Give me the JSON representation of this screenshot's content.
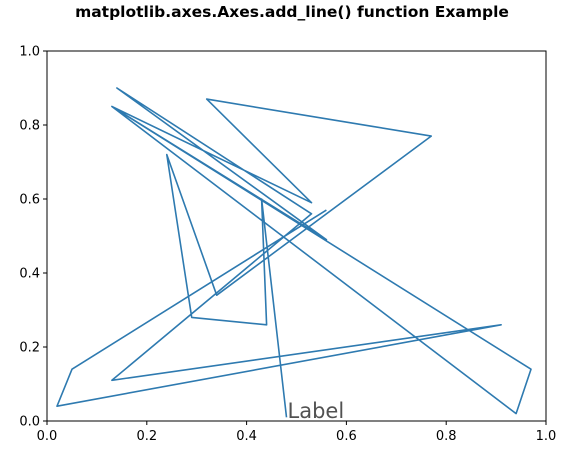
{
  "chart_data": {
    "type": "line",
    "title": "matplotlib.axes.Axes.add_line() function Example",
    "xlabel": "",
    "ylabel": "",
    "xlim": [
      0,
      1
    ],
    "ylim": [
      0,
      1
    ],
    "xticks": [
      "0.0",
      "0.2",
      "0.4",
      "0.6",
      "0.8",
      "1.0"
    ],
    "yticks": [
      "0.0",
      "0.2",
      "0.4",
      "0.6",
      "0.8",
      "1.0"
    ],
    "grid": false,
    "annotation": {
      "text": "Label",
      "x": 0.48,
      "y": 0.0
    },
    "series": [
      {
        "color": "#2e7ab0",
        "x": [
          0.48,
          0.43,
          0.44,
          0.29,
          0.24,
          0.34,
          0.77,
          0.32,
          0.53,
          0.13,
          0.97,
          0.94,
          0.13,
          0.56,
          0.14,
          0.53,
          0.13,
          0.91,
          0.02,
          0.05,
          0.56
        ],
        "y": [
          0.01,
          0.6,
          0.26,
          0.28,
          0.72,
          0.34,
          0.77,
          0.87,
          0.59,
          0.85,
          0.14,
          0.02,
          0.85,
          0.49,
          0.9,
          0.56,
          0.11,
          0.26,
          0.04,
          0.14,
          0.57
        ]
      }
    ]
  }
}
